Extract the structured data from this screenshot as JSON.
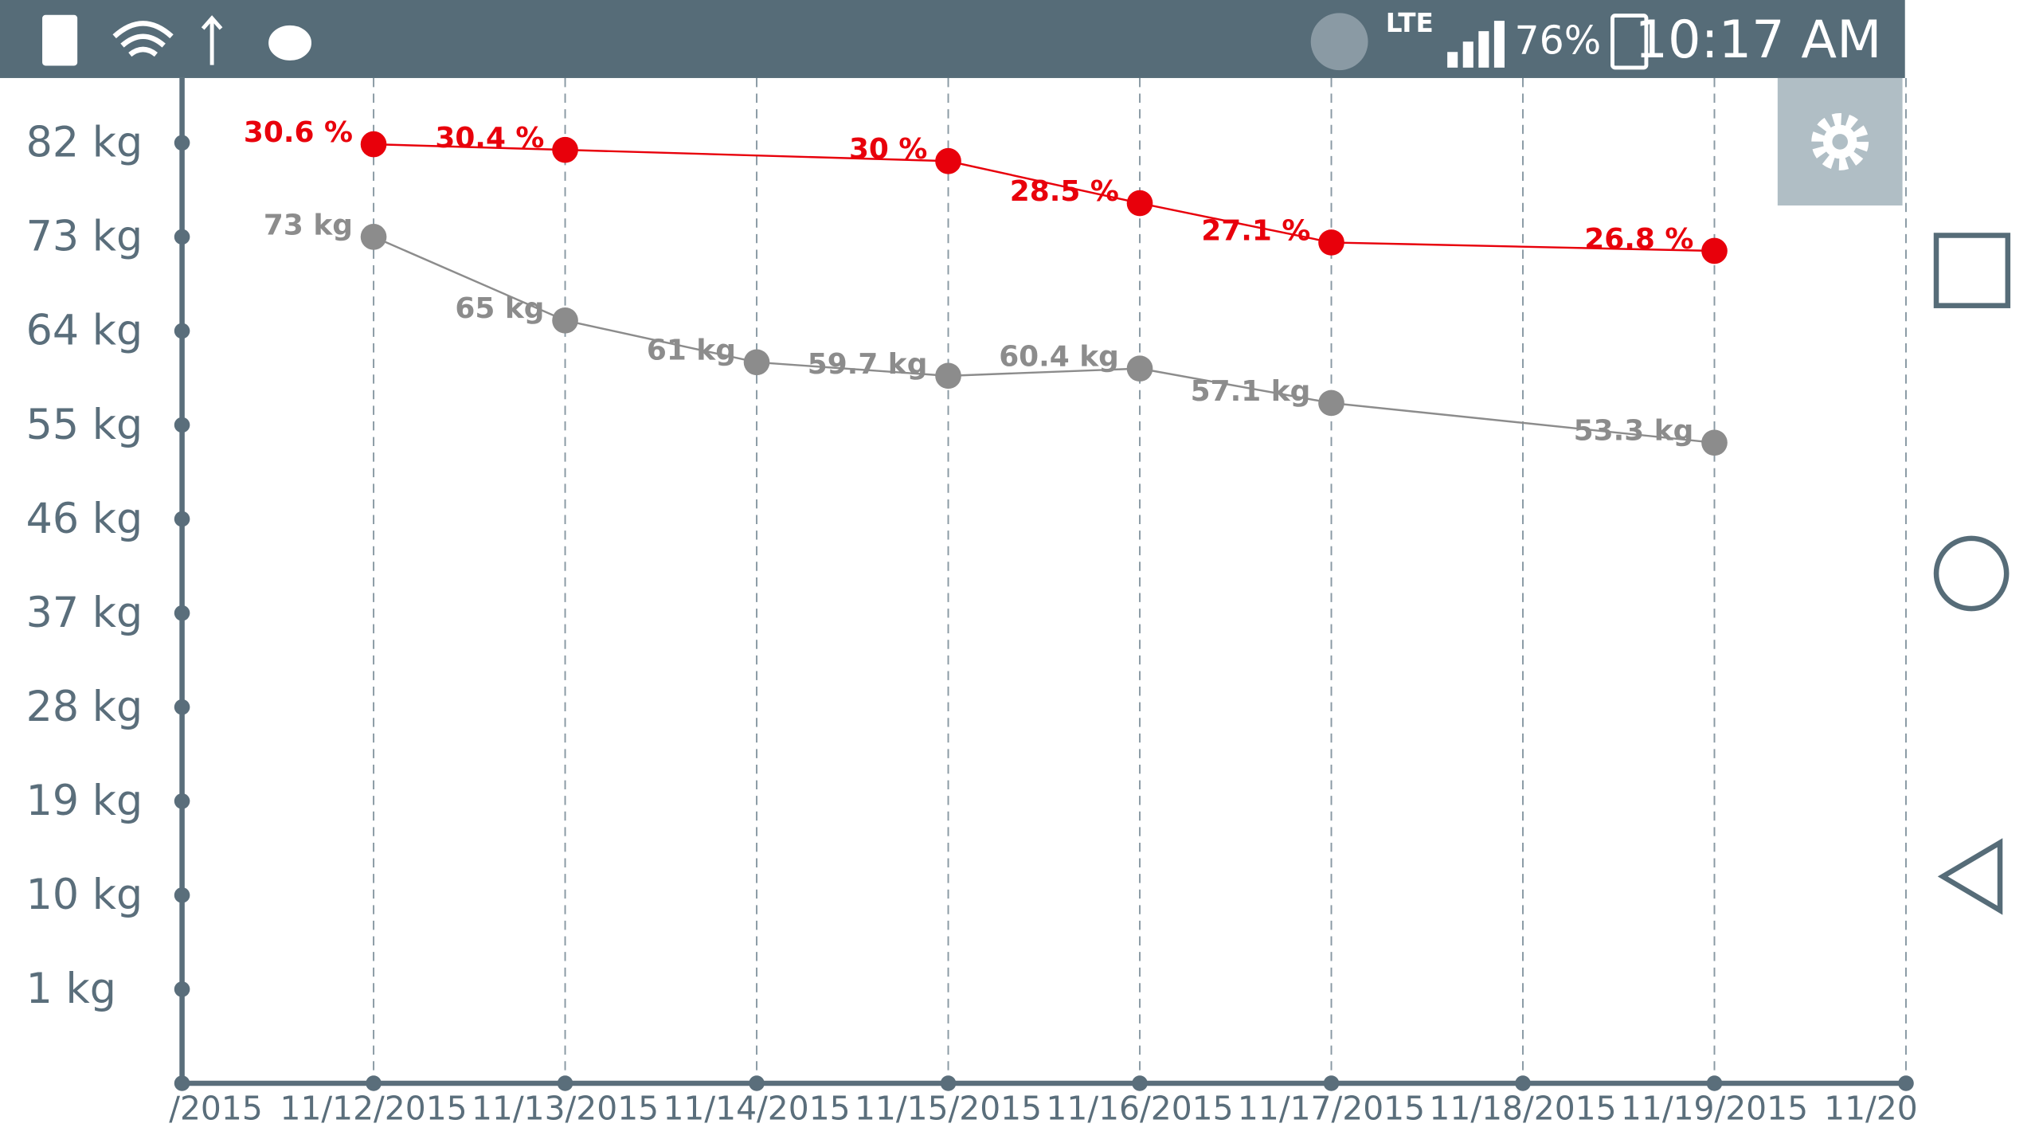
{
  "status_bar": {
    "network": "LTE",
    "battery": "76%",
    "time": "10:17 AM"
  },
  "chart_data": {
    "type": "line",
    "categories": [
      "/2015",
      "11/12/2015",
      "11/13/2015",
      "11/14/2015",
      "11/15/2015",
      "11/16/2015",
      "11/17/2015",
      "11/18/2015",
      "11/19/2015",
      "11/20"
    ],
    "ylim": [
      -8,
      88.2
    ],
    "yticks": [
      {
        "value": 82,
        "label": "82 kg"
      },
      {
        "value": 73,
        "label": "73 kg"
      },
      {
        "value": 64,
        "label": "64 kg"
      },
      {
        "value": 55,
        "label": "55 kg"
      },
      {
        "value": 46,
        "label": "46 kg"
      },
      {
        "value": 37,
        "label": "37 kg"
      },
      {
        "value": 28,
        "label": "28 kg"
      },
      {
        "value": 19,
        "label": "19 kg"
      },
      {
        "value": 10,
        "label": "10 kg"
      },
      {
        "value": 1,
        "label": "1 kg"
      }
    ],
    "y2lim": [
      -2.86,
      32.96
    ],
    "grid": true,
    "series": [
      {
        "color": "#8c8c8c",
        "x": [
          "11/12/2015",
          "11/13/2015",
          "11/14/2015",
          "11/15/2015",
          "11/16/2015",
          "11/17/2015",
          "11/19/2015"
        ],
        "values": [
          73,
          65,
          61,
          59.7,
          60.4,
          57.1,
          53.3
        ],
        "value_labels": [
          "73 kg",
          "65 kg",
          "61 kg",
          "59.7 kg",
          "60.4 kg",
          "57.1 kg",
          "53.3 kg"
        ]
      },
      {
        "color": "#e8000b",
        "axis": "y2",
        "x": [
          "11/12/2015",
          "11/13/2015",
          "11/15/2015",
          "11/16/2015",
          "11/17/2015",
          "11/19/2015"
        ],
        "values": [
          30.6,
          30.4,
          30,
          28.5,
          27.1,
          26.8
        ],
        "value_labels": [
          "30.6 %",
          "30.4 %",
          "30 %",
          "28.5 %",
          "27.1 %",
          "26.8 %"
        ]
      }
    ]
  }
}
